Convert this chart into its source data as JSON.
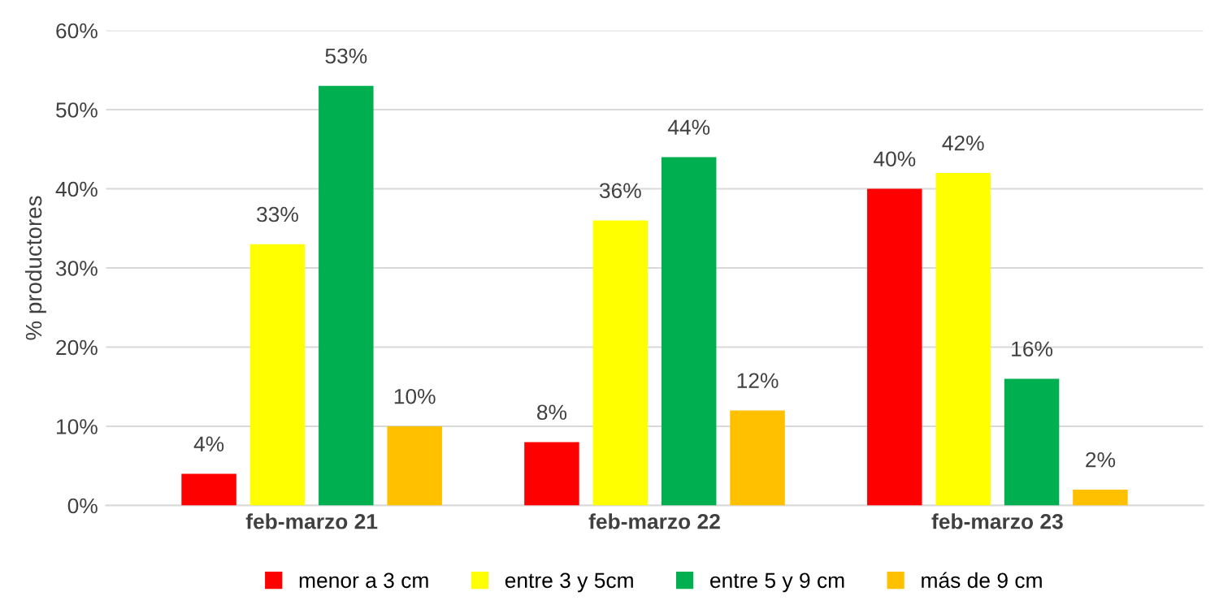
{
  "chart_data": {
    "type": "bar",
    "ylabel": "% productores",
    "categories": [
      "feb-marzo 21",
      "feb-marzo 22",
      "feb-marzo 23"
    ],
    "series": [
      {
        "name": "menor a 3 cm",
        "color": "#ff0000",
        "values": [
          4,
          8,
          40
        ],
        "value_labels": [
          "4%",
          "8%",
          "40%"
        ]
      },
      {
        "name": "entre 3 y 5cm",
        "color": "#ffff00",
        "values": [
          33,
          36,
          42
        ],
        "value_labels": [
          "33%",
          "36%",
          "42%"
        ]
      },
      {
        "name": "entre 5 y 9 cm",
        "color": "#00b050",
        "values": [
          53,
          44,
          16
        ],
        "value_labels": [
          "53%",
          "44%",
          "16%"
        ]
      },
      {
        "name": "más de 9 cm",
        "color": "#ffc000",
        "values": [
          10,
          12,
          2
        ],
        "value_labels": [
          "10%",
          "12%",
          "2%"
        ]
      }
    ],
    "ylim": [
      0,
      60
    ],
    "yticks": [
      {
        "value": 0,
        "label": "0%"
      },
      {
        "value": 10,
        "label": "10%"
      },
      {
        "value": 20,
        "label": "20%"
      },
      {
        "value": 30,
        "label": "30%"
      },
      {
        "value": 40,
        "label": "40%"
      },
      {
        "value": 50,
        "label": "50%"
      },
      {
        "value": 60,
        "label": "60%"
      }
    ],
    "grid": "y",
    "legend": "bottom"
  }
}
